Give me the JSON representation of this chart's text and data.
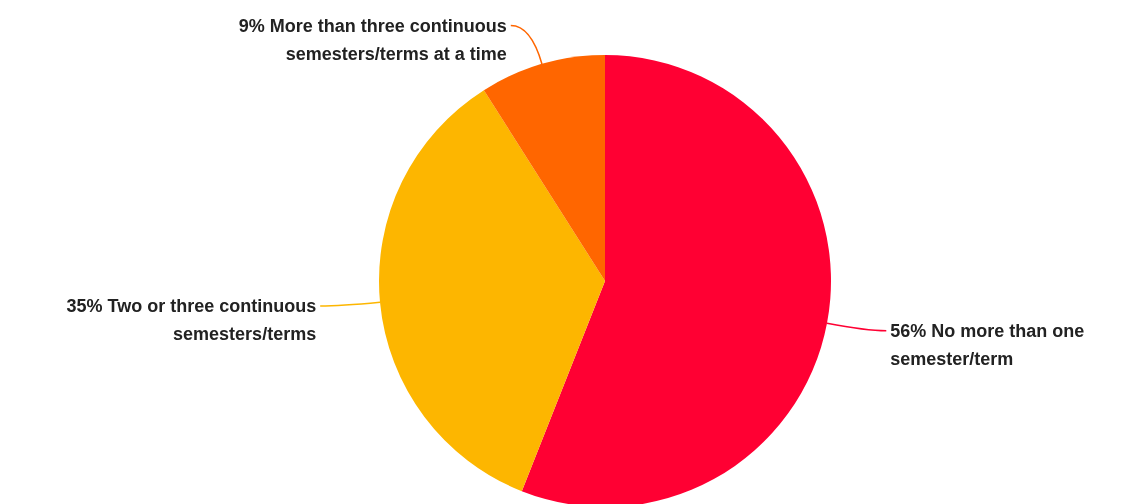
{
  "chart_data": {
    "type": "pie",
    "categories": [
      "No more than one\nsemester/term",
      "Two or three continuous\nsemesters/terms",
      "More than three continuous\nsemesters/terms at a time"
    ],
    "values": [
      56,
      35,
      9
    ],
    "value_labels": [
      "56%",
      "35%",
      "9%"
    ],
    "colors": [
      "#ff0033",
      "#fdb600",
      "#ff6600"
    ],
    "legend": false
  }
}
